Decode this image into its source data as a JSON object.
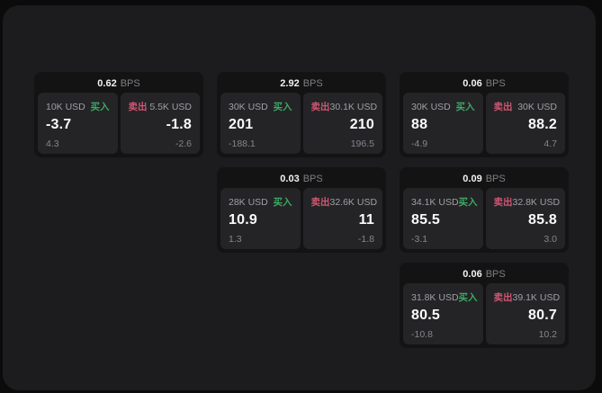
{
  "labels": {
    "bps_unit": "BPS",
    "buy": "买入",
    "sell": "卖出"
  },
  "colors": {
    "buy_green": "#3da863",
    "sell_red": "#cf5672",
    "card_background": "#131314",
    "tile_background": "#242427",
    "panel_background": "#1c1c1e"
  },
  "cards": [
    {
      "bps": "0.62",
      "buy": {
        "amount": "10K USD",
        "value": "-3.7",
        "delta": "4.3"
      },
      "sell": {
        "amount": "5.5K USD",
        "value": "-1.8",
        "delta": "-2.6"
      }
    },
    {
      "bps": "2.92",
      "buy": {
        "amount": "30K USD",
        "value": "201",
        "delta": "-188.1"
      },
      "sell": {
        "amount": "30.1K USD",
        "value": "210",
        "delta": "196.5"
      }
    },
    {
      "bps": "0.06",
      "buy": {
        "amount": "30K USD",
        "value": "88",
        "delta": "-4.9"
      },
      "sell": {
        "amount": "30K USD",
        "value": "88.2",
        "delta": "4.7"
      }
    },
    {
      "bps": "0.03",
      "buy": {
        "amount": "28K USD",
        "value": "10.9",
        "delta": "1.3"
      },
      "sell": {
        "amount": "32.6K USD",
        "value": "11",
        "delta": "-1.8"
      }
    },
    {
      "bps": "0.09",
      "buy": {
        "amount": "34.1K USD",
        "value": "85.5",
        "delta": "-3.1"
      },
      "sell": {
        "amount": "32.8K USD",
        "value": "85.8",
        "delta": "3.0"
      }
    },
    {
      "bps": "0.06",
      "buy": {
        "amount": "31.8K USD",
        "value": "80.5",
        "delta": "-10.8"
      },
      "sell": {
        "amount": "39.1K USD",
        "value": "80.7",
        "delta": "10.2"
      }
    }
  ]
}
